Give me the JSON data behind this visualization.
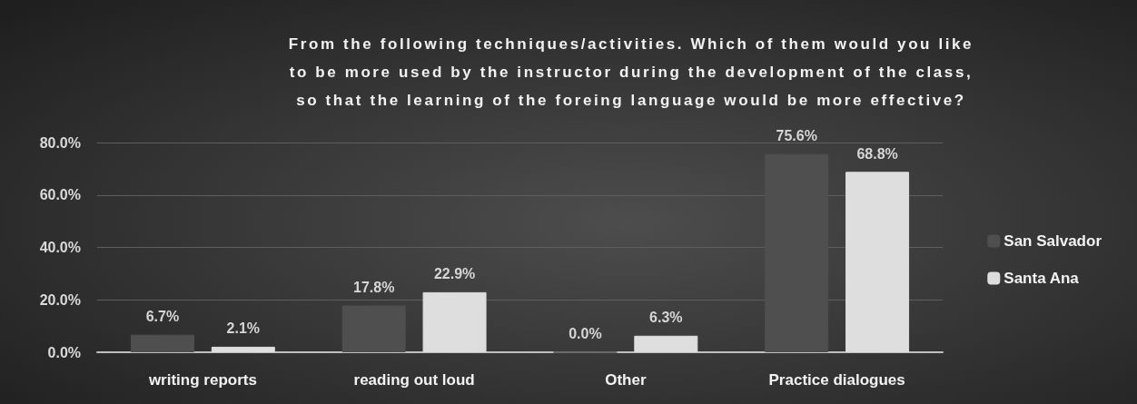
{
  "chart_data": {
    "type": "bar",
    "title": "From the following techniques/activities. Which of them would you like to be more used by the instructor during the development of the class, so that the learning of the foreing language would be more effective?",
    "categories": [
      "writing reports",
      "reading out loud",
      "Other",
      "Practice dialogues"
    ],
    "series": [
      {
        "name": "San Salvador",
        "color": "#4f4f4f",
        "values": [
          6.7,
          17.8,
          0.0,
          75.6
        ],
        "value_labels": [
          "6.7%",
          "17.8%",
          "0.0%",
          "75.6%"
        ]
      },
      {
        "name": "Santa Ana",
        "color": "#dedede",
        "values": [
          2.1,
          22.9,
          6.3,
          68.8
        ],
        "value_labels": [
          "2.1%",
          "22.9%",
          "6.3%",
          "68.8%"
        ]
      }
    ],
    "ylim": [
      0,
      80
    ],
    "yticks": [
      {
        "value": 0,
        "label": "0.0%"
      },
      {
        "value": 20,
        "label": "20.0%"
      },
      {
        "value": 40,
        "label": "40.0%"
      },
      {
        "value": 60,
        "label": "60.0%"
      },
      {
        "value": 80,
        "label": "80.0%"
      }
    ],
    "grid": "y",
    "legend": "right"
  }
}
